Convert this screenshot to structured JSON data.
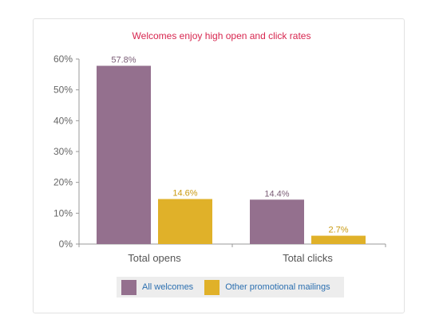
{
  "chart_data": {
    "type": "bar",
    "title": "Welcomes enjoy high open and click rates",
    "categories": [
      "Total opens",
      "Total clicks"
    ],
    "series": [
      {
        "name": "All welcomes",
        "values": [
          57.8,
          14.4
        ],
        "labels": [
          "57.8%",
          "14.4%"
        ],
        "color": "#94708e",
        "label_color": "#7a5d76"
      },
      {
        "name": "Other promotional mailings",
        "values": [
          14.6,
          2.7
        ],
        "labels": [
          "14.6%",
          "2.7%"
        ],
        "color": "#e0b129",
        "label_color": "#c99a12"
      }
    ],
    "y_ticks": [
      0,
      10,
      20,
      30,
      40,
      50,
      60
    ],
    "y_tick_labels": [
      "0%",
      "10%",
      "20%",
      "30%",
      "40%",
      "50%",
      "60%"
    ],
    "ylim": [
      0,
      60
    ],
    "grid": false,
    "legend_position": "bottom"
  }
}
